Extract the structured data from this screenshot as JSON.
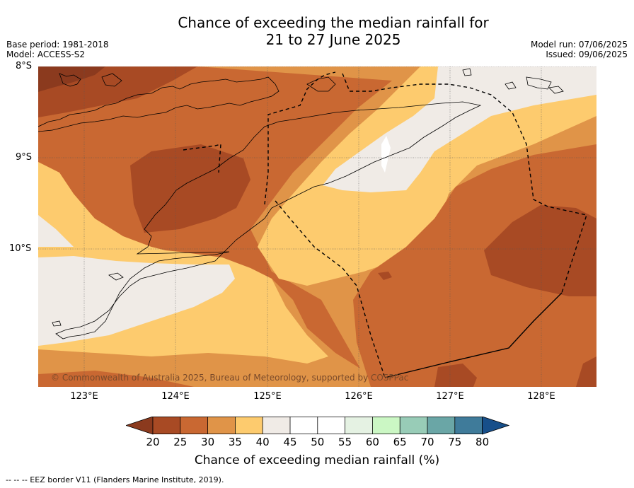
{
  "title_line1": "Chance of exceeding the median rainfall for",
  "title_line2": "21 to 27 June 2025",
  "base_period": "Base period: 1981-2018",
  "model": "Model: ACCESS-S2",
  "model_run": "Model run: 07/06/2025",
  "issued": "Issued: 09/06/2025",
  "lat_labels": [
    "8°S",
    "9°S",
    "10°S"
  ],
  "lon_labels": [
    "123°E",
    "124°E",
    "125°E",
    "126°E",
    "127°E",
    "128°E"
  ],
  "copyright": "© Commonwealth of Australia 2025, Bureau of Meteorology, supported by COSPPac",
  "colorbar": {
    "title": "Chance of exceeding median rainfall (%)",
    "ticks": [
      "20",
      "25",
      "30",
      "35",
      "40",
      "45",
      "50",
      "55",
      "60",
      "65",
      "70",
      "75",
      "80"
    ],
    "under_color": "#8b3a1e",
    "over_color": "#174f8a",
    "bin_colors": [
      "#a84a24",
      "#c96832",
      "#e09448",
      "#fdcb6e",
      "#f0ebe6",
      "#ffffff",
      "#ffffff",
      "#e5f2e3",
      "#cbf7c4",
      "#98ccb7",
      "#6aa6a6",
      "#3f7b9a"
    ]
  },
  "footnote": "--  --  -- EEZ border V11 (Flanders Marine Institute, 2019).",
  "colors": {
    "c20_25": "#a84a24",
    "c25_30": "#c96832",
    "c30_35": "#e09448",
    "c35_40": "#fdcb6e",
    "c40_45": "#f0ebe6",
    "c_lt20": "#8b3a1e"
  }
}
